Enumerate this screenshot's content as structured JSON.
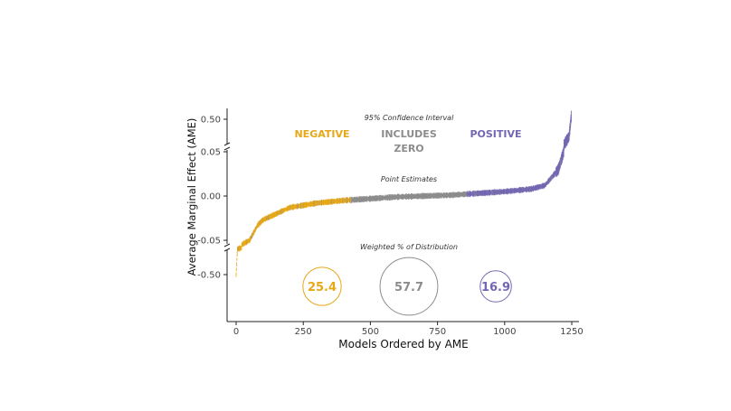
{
  "chart_data": {
    "type": "scatter",
    "xlabel": "Models Ordered by AME",
    "ylabel": "Average Marginal Effect (AME)",
    "xlim": [
      0,
      1250
    ],
    "xticks": [
      "0",
      "250",
      "500",
      "750",
      "1000",
      "1250"
    ],
    "xtick_values": [
      0,
      250,
      500,
      750,
      1000,
      1250
    ],
    "yticks": [
      "0.50",
      "0.05",
      "0.00",
      "-0.05",
      "-0.50"
    ],
    "ytick_values": [
      0.5,
      0.05,
      0,
      -0.05,
      -0.5
    ],
    "y_axis_broken": true,
    "grid": false,
    "annotations": {
      "ci_title": "95% Confidence Interval",
      "negative": "NEGATIVE",
      "includes_zero_1": "INCLUDES",
      "includes_zero_2": "ZERO",
      "positive": "POSITIVE",
      "point_title": "Point Estimates",
      "weighted_title": "Weighted % of Distribution"
    },
    "curve": [
      [
        0,
        -0.5
      ],
      [
        5,
        -0.07
      ],
      [
        15,
        -0.056
      ],
      [
        50,
        -0.05
      ],
      [
        80,
        -0.033
      ],
      [
        100,
        -0.027
      ],
      [
        200,
        -0.013
      ],
      [
        300,
        -0.008
      ],
      [
        400,
        -0.005
      ],
      [
        500,
        -0.003
      ],
      [
        600,
        -0.001
      ],
      [
        700,
        0.0
      ],
      [
        800,
        0.001
      ],
      [
        900,
        0.003
      ],
      [
        1000,
        0.005
      ],
      [
        1100,
        0.008
      ],
      [
        1150,
        0.012
      ],
      [
        1200,
        0.03
      ],
      [
        1220,
        0.05
      ],
      [
        1240,
        0.2
      ],
      [
        1248,
        0.55
      ]
    ],
    "categories": [
      {
        "name": "NEGATIVE",
        "from": 0,
        "to": 430,
        "color": "#E6A817"
      },
      {
        "name": "INCLUDES ZERO",
        "from": 430,
        "to": 860,
        "color": "#8C8C8C"
      },
      {
        "name": "POSITIVE",
        "from": 860,
        "to": 1250,
        "color": "#7366B3"
      }
    ],
    "distribution": [
      {
        "label": "25.4",
        "value": 25.4,
        "color": "#E6A817"
      },
      {
        "label": "57.7",
        "value": 57.7,
        "color": "#8C8C8C"
      },
      {
        "label": "16.9",
        "value": 16.9,
        "color": "#7366B3"
      }
    ]
  }
}
